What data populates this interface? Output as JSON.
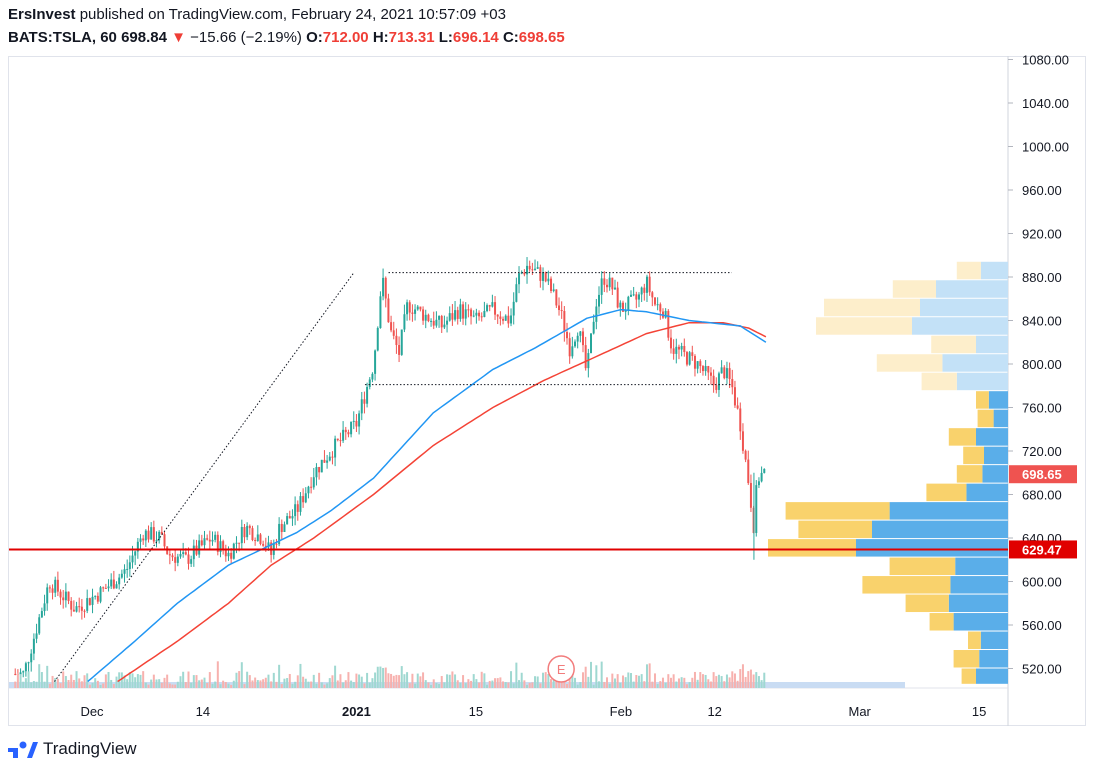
{
  "header": {
    "author": "ErsInvest",
    "published_text": "published on TradingView.com, February 24, 2021 10:57:09 +03",
    "symbol": "BATS:TSLA, 60",
    "last": "698.84",
    "change_arrow": "▼",
    "change": "−15.66 (−2.19%)",
    "o_label": "O:",
    "o_value": "712.00",
    "h_label": "H:",
    "h_value": "713.31",
    "l_label": "L:",
    "l_value": "696.14",
    "c_label": "C:",
    "c_value": "698.65"
  },
  "branding": {
    "label": "TradingView",
    "icon": "tradingview-logo-icon"
  },
  "colors": {
    "up": "#26a69a",
    "down": "#ef5350",
    "sma_fast": "#2196f3",
    "sma_slow": "#f44336",
    "level_line": "#e00000",
    "vp_up": "#5aaee9",
    "vp_down": "#f9d26c",
    "vp_up_light": "#c3e1f7",
    "vp_down_light": "#fdeecb",
    "price_tag": "#ef5350"
  },
  "chart_data": {
    "type": "candlestick",
    "y_ticks": [
      "520.00",
      "560.00",
      "600.00",
      "640.00",
      "680.00",
      "720.00",
      "760.00",
      "800.00",
      "840.00",
      "880.00",
      "920.00",
      "960.00",
      "1000.00",
      "1040.00",
      "1080.00"
    ],
    "ylim": [
      508,
      1090
    ],
    "x_ticks": [
      {
        "label": "Dec",
        "day": 0
      },
      {
        "label": "14",
        "day": 13
      },
      {
        "label": "2021",
        "day": 31
      },
      {
        "label": "15",
        "day": 45
      },
      {
        "label": "Feb",
        "day": 62
      },
      {
        "label": "12",
        "day": 73
      },
      {
        "label": "Mar",
        "day": 90
      },
      {
        "label": "15",
        "day": 104
      }
    ],
    "price_keypoints": [
      {
        "day": -8,
        "price": 515
      },
      {
        "day": -5,
        "price": 600
      },
      {
        "day": -2,
        "price": 575
      },
      {
        "day": 1,
        "price": 590
      },
      {
        "day": 4,
        "price": 610
      },
      {
        "day": 6,
        "price": 645
      },
      {
        "day": 8,
        "price": 640
      },
      {
        "day": 9,
        "price": 625
      },
      {
        "day": 11,
        "price": 620
      },
      {
        "day": 14,
        "price": 640
      },
      {
        "day": 16,
        "price": 625
      },
      {
        "day": 18,
        "price": 650
      },
      {
        "day": 20,
        "price": 640
      },
      {
        "day": 21,
        "price": 625
      },
      {
        "day": 22,
        "price": 650
      },
      {
        "day": 24,
        "price": 665
      },
      {
        "day": 26,
        "price": 700
      },
      {
        "day": 28,
        "price": 720
      },
      {
        "day": 31,
        "price": 745
      },
      {
        "day": 33,
        "price": 800
      },
      {
        "day": 34,
        "price": 880
      },
      {
        "day": 35,
        "price": 830
      },
      {
        "day": 36,
        "price": 810
      },
      {
        "day": 37,
        "price": 855
      },
      {
        "day": 39,
        "price": 845
      },
      {
        "day": 41,
        "price": 835
      },
      {
        "day": 43,
        "price": 850
      },
      {
        "day": 45,
        "price": 840
      },
      {
        "day": 47,
        "price": 850
      },
      {
        "day": 49,
        "price": 840
      },
      {
        "day": 50,
        "price": 880
      },
      {
        "day": 51,
        "price": 890
      },
      {
        "day": 53,
        "price": 880
      },
      {
        "day": 54,
        "price": 865
      },
      {
        "day": 55,
        "price": 845
      },
      {
        "day": 56,
        "price": 815
      },
      {
        "day": 57,
        "price": 835
      },
      {
        "day": 58,
        "price": 790
      },
      {
        "day": 59,
        "price": 855
      },
      {
        "day": 60,
        "price": 880
      },
      {
        "day": 61,
        "price": 870
      },
      {
        "day": 62,
        "price": 850
      },
      {
        "day": 64,
        "price": 860
      },
      {
        "day": 65,
        "price": 875
      },
      {
        "day": 66,
        "price": 855
      },
      {
        "day": 67,
        "price": 850
      },
      {
        "day": 68,
        "price": 815
      },
      {
        "day": 70,
        "price": 805
      },
      {
        "day": 71,
        "price": 800
      },
      {
        "day": 72,
        "price": 790
      },
      {
        "day": 73,
        "price": 780
      },
      {
        "day": 74,
        "price": 795
      },
      {
        "day": 75,
        "price": 780
      },
      {
        "day": 76,
        "price": 745
      },
      {
        "day": 77,
        "price": 690
      },
      {
        "day": 77.6,
        "price": 650
      },
      {
        "day": 78,
        "price": 695
      },
      {
        "day": 78.8,
        "price": 700
      }
    ],
    "candle_days": [
      -9,
      79
    ],
    "sma_fast_keypoints": [
      {
        "day": -0.5,
        "price": 508
      },
      {
        "day": 5,
        "price": 545
      },
      {
        "day": 10,
        "price": 580
      },
      {
        "day": 16,
        "price": 615
      },
      {
        "day": 20,
        "price": 630
      },
      {
        "day": 24,
        "price": 645
      },
      {
        "day": 28,
        "price": 665
      },
      {
        "day": 33,
        "price": 695
      },
      {
        "day": 40,
        "price": 755
      },
      {
        "day": 47,
        "price": 795
      },
      {
        "day": 52,
        "price": 815
      },
      {
        "day": 58,
        "price": 842
      },
      {
        "day": 62,
        "price": 850
      },
      {
        "day": 65,
        "price": 848
      },
      {
        "day": 70,
        "price": 840
      },
      {
        "day": 76,
        "price": 835
      },
      {
        "day": 79,
        "price": 820
      }
    ],
    "sma_slow_keypoints": [
      {
        "day": 3,
        "price": 508
      },
      {
        "day": 10,
        "price": 545
      },
      {
        "day": 16,
        "price": 580
      },
      {
        "day": 21,
        "price": 615
      },
      {
        "day": 26,
        "price": 640
      },
      {
        "day": 33,
        "price": 680
      },
      {
        "day": 40,
        "price": 725
      },
      {
        "day": 47,
        "price": 760
      },
      {
        "day": 53,
        "price": 785
      },
      {
        "day": 60,
        "price": 810
      },
      {
        "day": 65,
        "price": 828
      },
      {
        "day": 70,
        "price": 838
      },
      {
        "day": 74,
        "price": 838
      },
      {
        "day": 77,
        "price": 833
      },
      {
        "day": 79,
        "price": 825
      }
    ],
    "level_price": 629.47,
    "level_label": "629.47",
    "last_price": 698.65,
    "last_label": "698.65",
    "range_top": {
      "day_from": 50,
      "day_to": 75,
      "price": 884
    },
    "range_bottom": {
      "day_from": 32,
      "day_to": 75,
      "price": 781
    },
    "trend_line": {
      "from_day": -4.4,
      "from_price": 508,
      "to_day": 30.7,
      "to_price": 884
    },
    "volume_profile": [
      {
        "bottom": 505,
        "top": 520,
        "up": 0.4,
        "down": 0.18,
        "light": false
      },
      {
        "bottom": 520,
        "top": 537,
        "up": 0.36,
        "down": 0.32,
        "light": false
      },
      {
        "bottom": 537,
        "top": 554,
        "up": 0.34,
        "down": 0.16,
        "light": false
      },
      {
        "bottom": 554,
        "top": 571,
        "up": 0.68,
        "down": 0.3,
        "light": false
      },
      {
        "bottom": 571,
        "top": 588,
        "up": 0.74,
        "down": 0.54,
        "light": false
      },
      {
        "bottom": 588,
        "top": 605,
        "up": 0.72,
        "down": 1.1,
        "light": false
      },
      {
        "bottom": 605,
        "top": 622,
        "up": 0.66,
        "down": 0.82,
        "light": false
      },
      {
        "bottom": 622,
        "top": 639,
        "up": 1.9,
        "down": 1.1,
        "light": false
      },
      {
        "bottom": 639,
        "top": 656,
        "up": 1.7,
        "down": 0.92,
        "light": false
      },
      {
        "bottom": 656,
        "top": 673,
        "up": 1.48,
        "down": 1.3,
        "light": false
      },
      {
        "bottom": 673,
        "top": 690,
        "up": 0.52,
        "down": 0.5,
        "light": false
      },
      {
        "bottom": 690,
        "top": 707,
        "up": 0.32,
        "down": 0.32,
        "light": false
      },
      {
        "bottom": 707,
        "top": 724,
        "up": 0.3,
        "down": 0.26,
        "light": false
      },
      {
        "bottom": 724,
        "top": 741,
        "up": 0.4,
        "down": 0.34,
        "light": false
      },
      {
        "bottom": 741,
        "top": 758,
        "up": 0.18,
        "down": 0.2,
        "light": false
      },
      {
        "bottom": 758,
        "top": 775,
        "up": 0.24,
        "down": 0.16,
        "light": false
      },
      {
        "bottom": 775,
        "top": 792,
        "up": 0.64,
        "down": 0.44,
        "light": true
      },
      {
        "bottom": 792,
        "top": 809,
        "up": 0.82,
        "down": 0.82,
        "light": true
      },
      {
        "bottom": 809,
        "top": 826,
        "up": 0.4,
        "down": 0.56,
        "light": true
      },
      {
        "bottom": 826,
        "top": 843,
        "up": 1.2,
        "down": 1.2,
        "light": true
      },
      {
        "bottom": 843,
        "top": 860,
        "up": 1.1,
        "down": 1.2,
        "light": true
      },
      {
        "bottom": 860,
        "top": 877,
        "up": 0.9,
        "down": 0.54,
        "light": true
      },
      {
        "bottom": 877,
        "top": 894,
        "up": 0.34,
        "down": 0.3,
        "light": true
      }
    ],
    "event_label": "E",
    "event_day": 55
  }
}
